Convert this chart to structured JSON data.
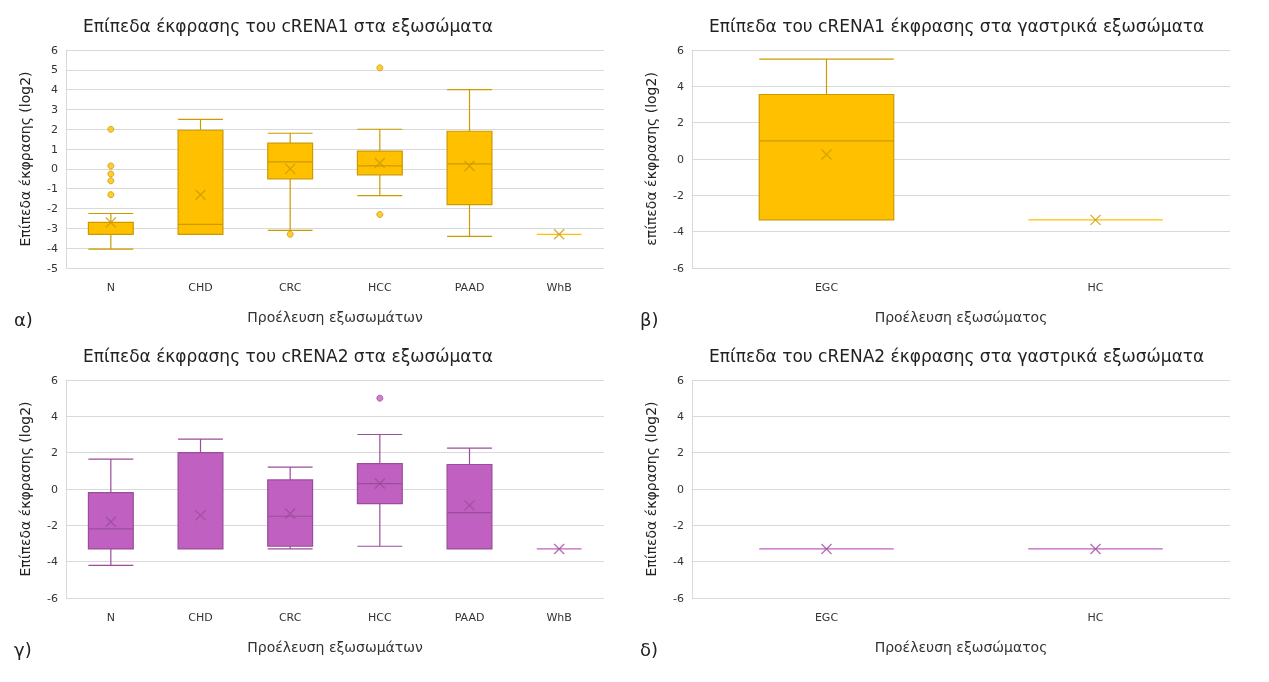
{
  "chart_data": [
    {
      "type": "box",
      "title": "Επίπεδα έκφρασης του cRENA1 στα εξωσώματα",
      "xlabel": "Προέλευση εξωσωμάτων",
      "ylabel": "Επίπεδα έκφρασης (log2)",
      "categories": [
        "N",
        "CHD",
        "CRC",
        "HCC",
        "PAAD",
        "WhB"
      ],
      "ylim": [
        -5,
        6
      ],
      "yticks": [
        -5,
        -4,
        -3,
        -2,
        -1,
        0,
        1,
        2,
        3,
        4,
        5,
        6
      ],
      "grid": "y",
      "marker": "cross",
      "annotations": [
        "α)"
      ],
      "series": [
        {
          "color": "#ffc000",
          "boxes": [
            {
              "low": -4.05,
              "q1": -3.3,
              "median": -3.3,
              "q3": -2.7,
              "high": -2.25,
              "mean": -2.7,
              "outliers": [
                2,
                0.15,
                -0.25,
                -0.6,
                -1.3
              ]
            },
            {
              "low": -3.3,
              "q1": -3.3,
              "median": -2.8,
              "q3": 1.95,
              "high": 2.5,
              "mean": -1.3
            },
            {
              "low": -3.1,
              "q1": -0.5,
              "median": 0.35,
              "q3": 1.3,
              "high": 1.8,
              "mean": 0,
              "outliers": [
                -3.3
              ]
            },
            {
              "low": -1.35,
              "q1": -0.3,
              "median": 0.15,
              "q3": 0.9,
              "high": 2,
              "mean": 0.3,
              "outliers": [
                5.1,
                -2.3
              ]
            },
            {
              "low": -3.4,
              "q1": -1.8,
              "median": 0.25,
              "q3": 1.9,
              "high": 4,
              "mean": 0.15
            },
            {
              "low": -3.3,
              "q1": -3.3,
              "median": -3.3,
              "q3": -3.3,
              "high": -3.3,
              "mean": -3.3
            }
          ]
        }
      ]
    },
    {
      "type": "box",
      "title": "Επίπεδα του cRENA1 έκφρασης στα γαστρικά εξωσώματα",
      "xlabel": "Προέλευση εξωσώματος",
      "ylabel": "επίπεδα έκφρασης (log2)",
      "categories": [
        "EGC",
        "HC"
      ],
      "ylim": [
        -6,
        6
      ],
      "yticks": [
        -6,
        -4,
        -2,
        0,
        2,
        4,
        6
      ],
      "grid": "y",
      "marker": "cross",
      "annotations": [
        "β)"
      ],
      "series": [
        {
          "color": "#ffc000",
          "boxes": [
            {
              "low": -3.35,
              "q1": -3.35,
              "median": 1,
              "q3": 3.55,
              "high": 5.5,
              "mean": 0.25
            },
            {
              "low": -3.35,
              "q1": -3.35,
              "median": -3.35,
              "q3": -3.35,
              "high": -3.35,
              "mean": -3.35
            }
          ]
        }
      ]
    },
    {
      "type": "box",
      "title": "Επίπεδα έκφρασης του cRENA2 στα εξωσώματα",
      "xlabel": "Προέλευση εξωσωμάτων",
      "ylabel": "Επίπεδα έκφρασης (log2)",
      "categories": [
        "N",
        "CHD",
        "CRC",
        "HCC",
        "PAAD",
        "WhB"
      ],
      "ylim": [
        -6,
        6
      ],
      "yticks": [
        -6,
        -4,
        -2,
        0,
        2,
        4,
        6
      ],
      "grid": "y",
      "marker": "cross",
      "annotations": [
        "γ)"
      ],
      "series": [
        {
          "color": "#c060c0",
          "boxes": [
            {
              "low": -4.2,
              "q1": -3.3,
              "median": -2.2,
              "q3": -0.2,
              "high": 1.65,
              "mean": -1.8
            },
            {
              "low": -3.3,
              "q1": -3.3,
              "median": -3.3,
              "q3": 2,
              "high": 2.75,
              "mean": -1.45
            },
            {
              "low": -3.3,
              "q1": -3.15,
              "median": -1.5,
              "q3": 0.5,
              "high": 1.2,
              "mean": -1.35
            },
            {
              "low": -3.15,
              "q1": -0.8,
              "median": 0.3,
              "q3": 1.4,
              "high": 3,
              "mean": 0.3,
              "outliers": [
                5
              ]
            },
            {
              "low": -3.3,
              "q1": -3.3,
              "median": -1.3,
              "q3": 1.35,
              "high": 2.25,
              "mean": -0.9
            },
            {
              "low": -3.3,
              "q1": -3.3,
              "median": -3.3,
              "q3": -3.3,
              "high": -3.3,
              "mean": -3.3
            }
          ]
        }
      ]
    },
    {
      "type": "box",
      "title": "Επίπεδα του cRENA2 έκφρασης στα γαστρικά εξωσώματα",
      "xlabel": "Προέλευση εξωσώματος",
      "ylabel": "Επίπεδα έκφρασης (log2)",
      "categories": [
        "EGC",
        "HC"
      ],
      "ylim": [
        -6,
        6
      ],
      "yticks": [
        -6,
        -4,
        -2,
        0,
        2,
        4,
        6
      ],
      "grid": "y",
      "marker": "cross",
      "annotations": [
        "δ)"
      ],
      "series": [
        {
          "color": "#c060c0",
          "boxes": [
            {
              "low": -3.3,
              "q1": -3.3,
              "median": -3.3,
              "q3": -3.3,
              "high": -3.3,
              "mean": -3.3
            },
            {
              "low": -3.3,
              "q1": -3.3,
              "median": -3.3,
              "q3": -3.3,
              "high": -3.3,
              "mean": -3.3
            }
          ]
        }
      ]
    }
  ]
}
